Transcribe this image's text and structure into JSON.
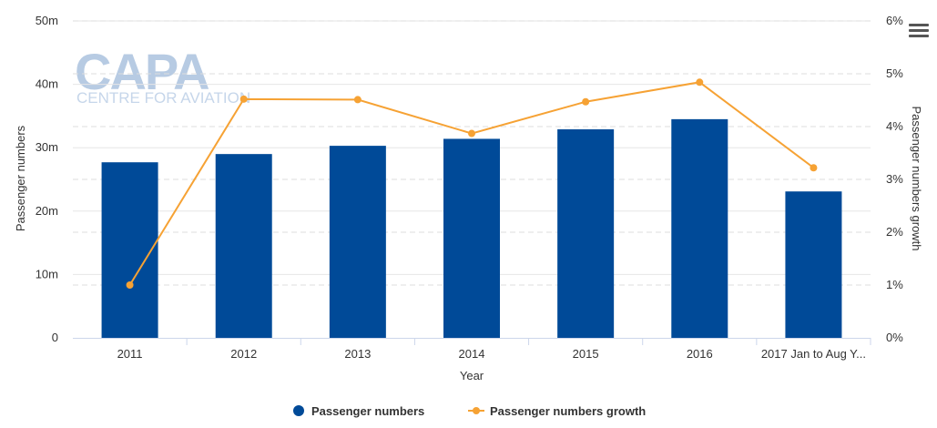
{
  "watermark": {
    "brand": "CAPA",
    "tagline": "CENTRE FOR AVIATION"
  },
  "menu": {
    "icon": "hamburger-menu-icon"
  },
  "chart_data": {
    "type": "bar",
    "title": "",
    "xlabel": "Year",
    "ylabel": "Passenger numbers",
    "y2label": "Passenger numbers growth",
    "categories": [
      "2011",
      "2012",
      "2013",
      "2014",
      "2015",
      "2016",
      "2017 Jan to Aug Y..."
    ],
    "ylim": [
      0,
      50
    ],
    "y_ticks": [
      0,
      10,
      20,
      30,
      40,
      50
    ],
    "y_tick_labels": [
      "0",
      "10m",
      "20m",
      "30m",
      "40m",
      "50m"
    ],
    "y2lim": [
      0,
      6
    ],
    "y2_ticks": [
      0,
      1,
      2,
      3,
      4,
      5,
      6
    ],
    "y2_tick_labels": [
      "0%",
      "1%",
      "2%",
      "3%",
      "4%",
      "5%",
      "6%"
    ],
    "grid": true,
    "legend_position": "bottom-center",
    "series": [
      {
        "name": "Passenger numbers",
        "type": "bar",
        "axis": "left",
        "color": "#004a98",
        "values": [
          27.7,
          29.0,
          30.3,
          31.4,
          32.9,
          34.5,
          23.1
        ]
      },
      {
        "name": "Passenger numbers growth",
        "type": "line",
        "axis": "right",
        "color": "#f6a234",
        "values": [
          1.0,
          4.52,
          4.51,
          3.87,
          4.47,
          4.84,
          3.22
        ]
      }
    ]
  }
}
